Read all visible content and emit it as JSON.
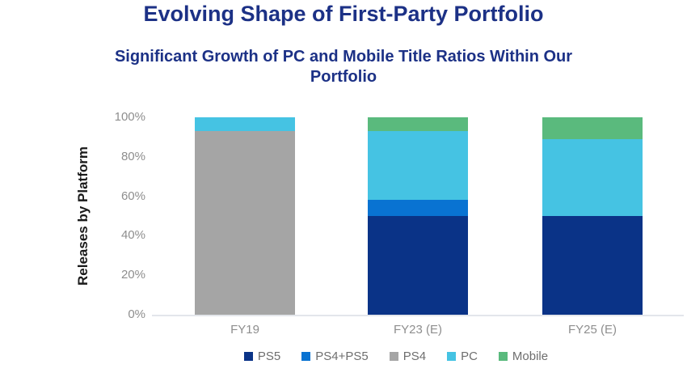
{
  "title": "Evolving Shape of First-Party Portfolio",
  "subtitle": "Significant Growth of PC and Mobile Title Ratios Within Our Portfolio",
  "colors": {
    "title_text": "#1c3186",
    "axis_text": "#8e8e8e",
    "y_axis_title_text": "#1a1a1a",
    "legend_text": "#6e6e6e",
    "axis_line": "#e3e6eb"
  },
  "chart_data": {
    "type": "bar",
    "stacked": true,
    "unit": "percent",
    "title": "Evolving Shape of First-Party Portfolio",
    "subtitle": "Significant Growth of PC and Mobile Title Ratios Within Our Portfolio",
    "xlabel": "",
    "ylabel": "Releases by Platform",
    "ylim": [
      0,
      100
    ],
    "ytick_labels": [
      "0%",
      "20%",
      "40%",
      "60%",
      "80%",
      "100%"
    ],
    "grid": false,
    "legend_position": "bottom",
    "categories": [
      "FY19",
      "FY23 (E)",
      "FY25 (E)"
    ],
    "series": [
      {
        "name": "PS5",
        "color": "#0a3387",
        "values": [
          0,
          50,
          50
        ]
      },
      {
        "name": "PS4+PS5",
        "color": "#0973d2",
        "values": [
          0,
          8,
          0
        ]
      },
      {
        "name": "PS4",
        "color": "#a5a5a5",
        "values": [
          93,
          0,
          0
        ]
      },
      {
        "name": "PC",
        "color": "#45c3e3",
        "values": [
          7,
          35,
          39
        ]
      },
      {
        "name": "Mobile",
        "color": "#5aba7d",
        "values": [
          0,
          7,
          11
        ]
      }
    ]
  }
}
